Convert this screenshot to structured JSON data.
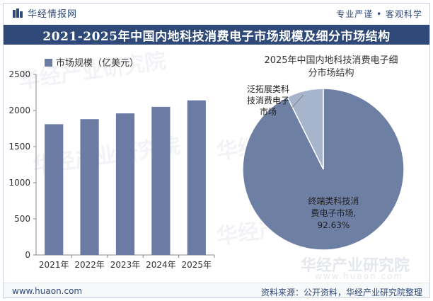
{
  "header": {
    "brand_name": "华经情报网",
    "slogan": "专业严谨 • 客观科学",
    "title": "2021-2025年中国内地科技消费电子市场规模及细分市场结构"
  },
  "watermark": {
    "cn": "华经产业研究院",
    "url": "www.huaon.com"
  },
  "footer": {
    "website": "www.huaon.com",
    "source": "资料来源：公开资料，华经产业研究院整理"
  },
  "colors": {
    "brand": "#2f4a78",
    "bar": "#6b7ba3",
    "pie_main": "#6e7fa4",
    "pie_minor": "#a7b5cc"
  },
  "chart_data": [
    {
      "type": "bar",
      "categories": [
        "2021年",
        "2022年",
        "2023年",
        "2024年",
        "2025年"
      ],
      "series": [
        {
          "name": "市场规模（亿美元）",
          "values": [
            1810,
            1880,
            1960,
            2050,
            2140
          ]
        }
      ],
      "title": "",
      "xlabel": "",
      "ylabel": "",
      "ylim": [
        0,
        2500
      ],
      "yticks": [
        0,
        500,
        1000,
        1500,
        2000,
        2500
      ],
      "grid": false,
      "legend": "top-left"
    },
    {
      "type": "pie",
      "title": "2025年中国内地科技消费电子细分市场结构",
      "title_lines": [
        "2025年中国内地科技消费电子细",
        "分市场结构"
      ],
      "slices": [
        {
          "label": "终端类科技消费电子市场",
          "label_lines": [
            "终端类科技消",
            "费电子市场,"
          ],
          "value": 92.63,
          "value_label": "92.63%"
        },
        {
          "label": "泛拓展类科技消费电子市场",
          "label_lines": [
            "泛拓展类科",
            "技消费电子",
            "市场"
          ],
          "value": 7.37,
          "value_label": ""
        }
      ]
    }
  ]
}
